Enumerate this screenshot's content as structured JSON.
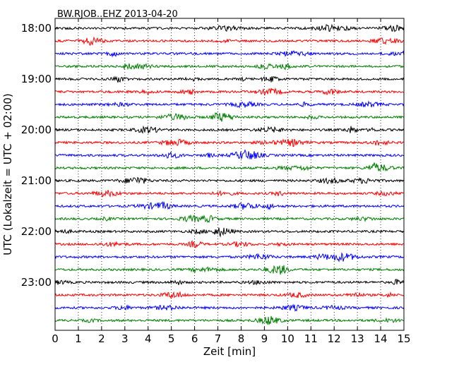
{
  "chart_data": {
    "type": "line",
    "title": "BW.RJOB..EHZ 2013-04-20",
    "xlabel": "Zeit  [min]",
    "ylabel": "UTC (Lokalzeit = UTC + 02:00)",
    "xlim": [
      0,
      15
    ],
    "x_ticks": [
      "0",
      "1",
      "2",
      "3",
      "4",
      "5",
      "6",
      "7",
      "8",
      "9",
      "10",
      "11",
      "12",
      "13",
      "14",
      "15"
    ],
    "y_ticks": [
      "18:00",
      "19:00",
      "20:00",
      "21:00",
      "22:00",
      "23:00"
    ],
    "grid": "vertical-dotted",
    "trace_interval_minutes": 15,
    "trace_start": "18:00",
    "trace_count": 24,
    "trace_colors": [
      "#000000",
      "#ff0000",
      "#0000ff",
      "#008000"
    ]
  }
}
